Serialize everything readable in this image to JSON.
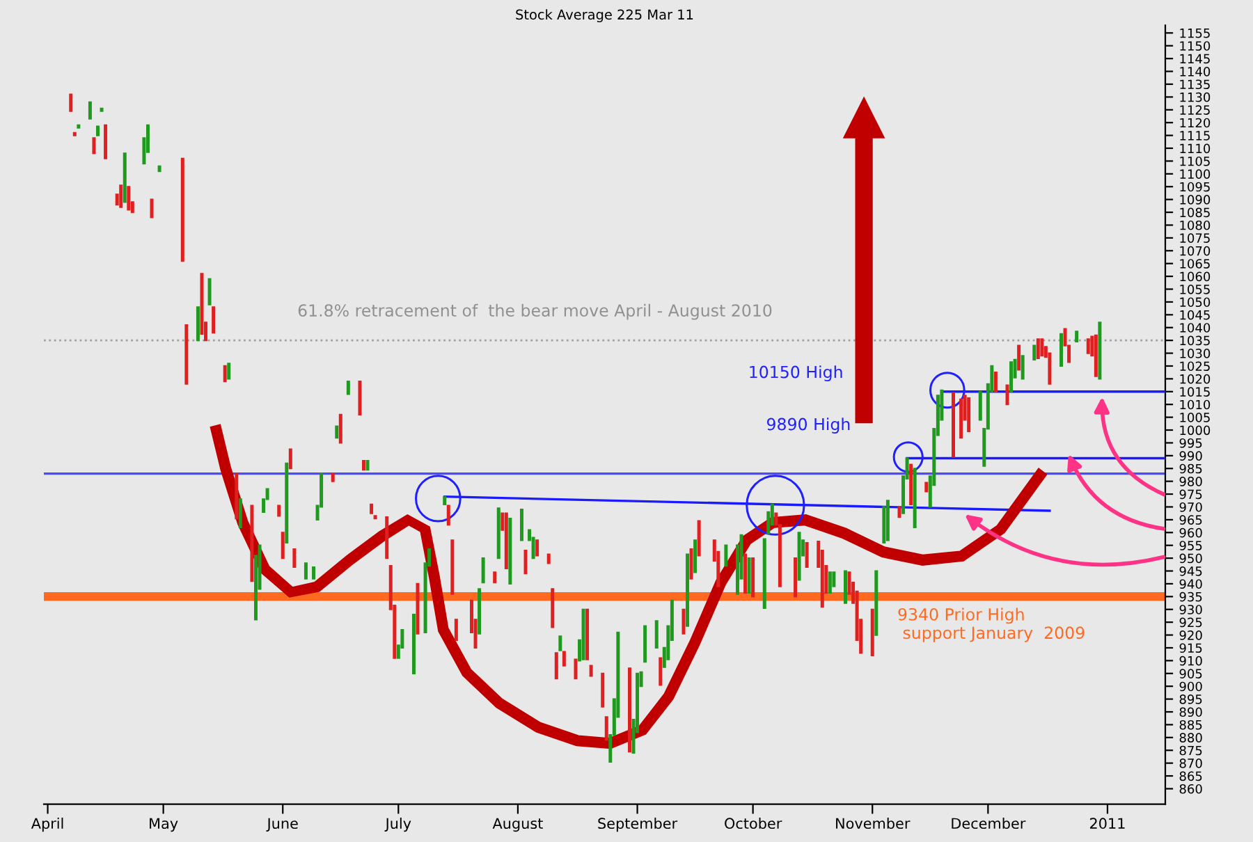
{
  "chart_data": {
    "type": "candlestick",
    "title": "Stock Average 225 Mar 11",
    "x": [
      "2010-04-07",
      "2010-04-08",
      "2010-04-09",
      "2010-04-12",
      "2010-04-13",
      "2010-04-14",
      "2010-04-15",
      "2010-04-16",
      "2010-04-19",
      "2010-04-20",
      "2010-04-21",
      "2010-04-22",
      "2010-04-23",
      "2010-04-26",
      "2010-04-27",
      "2010-04-28",
      "2010-04-30",
      "2010-05-06",
      "2010-05-07",
      "2010-05-10",
      "2010-05-11",
      "2010-05-12",
      "2010-05-13",
      "2010-05-14",
      "2010-05-17",
      "2010-05-18",
      "2010-05-20",
      "2010-05-21",
      "2010-05-24",
      "2010-05-25",
      "2010-05-26",
      "2010-05-27",
      "2010-05-28",
      "2010-05-31",
      "2010-06-01",
      "2010-06-02",
      "2010-06-03",
      "2010-06-04",
      "2010-06-07",
      "2010-06-09",
      "2010-06-10",
      "2010-06-11",
      "2010-06-14",
      "2010-06-15",
      "2010-06-16",
      "2010-06-18",
      "2010-06-21",
      "2010-06-22",
      "2010-06-23",
      "2010-06-24",
      "2010-06-25",
      "2010-06-28",
      "2010-06-29",
      "2010-06-30",
      "2010-07-01",
      "2010-07-02",
      "2010-07-05",
      "2010-07-06",
      "2010-07-08",
      "2010-07-09",
      "2010-07-13",
      "2010-07-14",
      "2010-07-15",
      "2010-07-16",
      "2010-07-20",
      "2010-07-21",
      "2010-07-22",
      "2010-07-23",
      "2010-07-26",
      "2010-07-27",
      "2010-07-28",
      "2010-07-29",
      "2010-07-30",
      "2010-08-02",
      "2010-08-03",
      "2010-08-04",
      "2010-08-05",
      "2010-08-06",
      "2010-08-09",
      "2010-08-10",
      "2010-08-11",
      "2010-08-12",
      "2010-08-13",
      "2010-08-16",
      "2010-08-17",
      "2010-08-18",
      "2010-08-19",
      "2010-08-20",
      "2010-08-23",
      "2010-08-24",
      "2010-08-25",
      "2010-08-26",
      "2010-08-27",
      "2010-08-30",
      "2010-08-31",
      "2010-09-01",
      "2010-09-02",
      "2010-09-03",
      "2010-09-06",
      "2010-09-07",
      "2010-09-08",
      "2010-09-09",
      "2010-09-10",
      "2010-09-13",
      "2010-09-14",
      "2010-09-15",
      "2010-09-16",
      "2010-09-17",
      "2010-09-21",
      "2010-09-22",
      "2010-09-24",
      "2010-09-27",
      "2010-09-28",
      "2010-09-29",
      "2010-09-30",
      "2010-10-01",
      "2010-10-04",
      "2010-10-05",
      "2010-10-06",
      "2010-10-07",
      "2010-10-08",
      "2010-10-12",
      "2010-10-13",
      "2010-10-14",
      "2010-10-15",
      "2010-10-18",
      "2010-10-19",
      "2010-10-20",
      "2010-10-21",
      "2010-10-22",
      "2010-10-25",
      "2010-10-26",
      "2010-10-27",
      "2010-10-28",
      "2010-10-29",
      "2010-11-01",
      "2010-11-02",
      "2010-11-04",
      "2010-11-05",
      "2010-11-08",
      "2010-11-09",
      "2010-11-10",
      "2010-11-11",
      "2010-11-12",
      "2010-11-15",
      "2010-11-16",
      "2010-11-17",
      "2010-11-18",
      "2010-11-19",
      "2010-11-22",
      "2010-11-24",
      "2010-11-25",
      "2010-11-26",
      "2010-11-29",
      "2010-11-30",
      "2010-12-01",
      "2010-12-02",
      "2010-12-03",
      "2010-12-06",
      "2010-12-07",
      "2010-12-08",
      "2010-12-09",
      "2010-12-10",
      "2010-12-13",
      "2010-12-14",
      "2010-12-15",
      "2010-12-16",
      "2010-12-17",
      "2010-12-20",
      "2010-12-21",
      "2010-12-22",
      "2010-12-24",
      "2010-12-27",
      "2010-12-28",
      "2010-12-29",
      "2010-12-30"
    ],
    "ohlc": [
      [
        1131,
        1131,
        1124.5,
        1124.5
      ],
      [
        1116,
        1116,
        1115,
        1115
      ],
      [
        1118,
        1119,
        1118,
        1119
      ],
      [
        1121.5,
        1128,
        1121.5,
        1128
      ],
      [
        1114,
        1114,
        1108,
        1108
      ],
      [
        1115,
        1118.5,
        1115,
        1118.5
      ],
      [
        1124.5,
        1125.5,
        1124.5,
        1125.5
      ],
      [
        1119,
        1119,
        1106,
        1106
      ],
      [
        1092,
        1092,
        1088,
        1088
      ],
      [
        1095.5,
        1095.5,
        1087,
        1087
      ],
      [
        1089,
        1108,
        1089,
        1108
      ],
      [
        1095,
        1095,
        1086,
        1086
      ],
      [
        1089,
        1089,
        1085,
        1085
      ],
      [
        1104,
        1114,
        1104,
        1114
      ],
      [
        1108.5,
        1119,
        1108.5,
        1119
      ],
      [
        1090,
        1090,
        1083,
        1083
      ],
      [
        1101,
        1103,
        1101,
        1103
      ],
      [
        1106,
        1106,
        1066,
        1066
      ],
      [
        1041,
        1041,
        1018,
        1018
      ],
      [
        1035,
        1048,
        1035,
        1048
      ],
      [
        1061,
        1061,
        1037.5,
        1037.5
      ],
      [
        1042,
        1042,
        1035,
        1035
      ],
      [
        1049,
        1059,
        1049,
        1059
      ],
      [
        1048,
        1048,
        1038,
        1038
      ],
      [
        1025,
        1025,
        1019,
        1019
      ],
      [
        1020,
        1026,
        1020,
        1026
      ],
      [
        983,
        983,
        965.5,
        965.5
      ],
      [
        962,
        973,
        962,
        973
      ],
      [
        970.5,
        970.5,
        941,
        941
      ],
      [
        926,
        951,
        926,
        951
      ],
      [
        938,
        955,
        938,
        955
      ],
      [
        968,
        973,
        968,
        973
      ],
      [
        973,
        977,
        973,
        977
      ],
      [
        970.5,
        970.5,
        966.5,
        966.5
      ],
      [
        960,
        960,
        950,
        950
      ],
      [
        956,
        987,
        956,
        987
      ],
      [
        992.5,
        992.5,
        985,
        985
      ],
      [
        953.5,
        953.5,
        946.5,
        946.5
      ],
      [
        942,
        948,
        942,
        948
      ],
      [
        942,
        946.5,
        942,
        946.5
      ],
      [
        965,
        970.5,
        965,
        970.5
      ],
      [
        970,
        983,
        970,
        983
      ],
      [
        983,
        983,
        980,
        980
      ],
      [
        997,
        1001.5,
        997,
        1001.5
      ],
      [
        1006,
        1006,
        995,
        995
      ],
      [
        1014,
        1019,
        1014,
        1019
      ],
      [
        1019,
        1019,
        1006,
        1006
      ],
      [
        988,
        988,
        984.5,
        984.5
      ],
      [
        984.5,
        988,
        984.5,
        988
      ],
      [
        971,
        971,
        967.5,
        967.5
      ],
      [
        966.5,
        966.5,
        965.5,
        965.5
      ],
      [
        966,
        966,
        950,
        950
      ],
      [
        947,
        947,
        930,
        930
      ],
      [
        931.5,
        931.5,
        911,
        911
      ],
      [
        911,
        916,
        911,
        916
      ],
      [
        915,
        922,
        915,
        922
      ],
      [
        905,
        928,
        905,
        928
      ],
      [
        940,
        940,
        920.5,
        920.5
      ],
      [
        921,
        948,
        921,
        948
      ],
      [
        947,
        953.5,
        947,
        953.5
      ],
      [
        971,
        974,
        971,
        974
      ],
      [
        970.5,
        970.5,
        963,
        963
      ],
      [
        957,
        957,
        936,
        936
      ],
      [
        926,
        926,
        918,
        918
      ],
      [
        933.5,
        933.5,
        921,
        921
      ],
      [
        926,
        926,
        915,
        915
      ],
      [
        920.5,
        938,
        920.5,
        938
      ],
      [
        940.5,
        950,
        940.5,
        950
      ],
      [
        944.5,
        944.5,
        940.5,
        940.5
      ],
      [
        950,
        969.5,
        950,
        969.5
      ],
      [
        967.5,
        967.5,
        961,
        961
      ],
      [
        967.5,
        967.5,
        946,
        946
      ],
      [
        940,
        965.5,
        940,
        965.5
      ],
      [
        957,
        969,
        957,
        969
      ],
      [
        953,
        953,
        944,
        944
      ],
      [
        957,
        961,
        957,
        961
      ],
      [
        950,
        958,
        950,
        958
      ],
      [
        957,
        957,
        951,
        951
      ],
      [
        951.5,
        951.5,
        948,
        948
      ],
      [
        938,
        938,
        923,
        923
      ],
      [
        913,
        913,
        903,
        903
      ],
      [
        914,
        919.5,
        914,
        919.5
      ],
      [
        913.5,
        913.5,
        908,
        908
      ],
      [
        910.5,
        910.5,
        903,
        903
      ],
      [
        910,
        918,
        910,
        918
      ],
      [
        910.5,
        930,
        910.5,
        930
      ],
      [
        930,
        930,
        910.5,
        910.5
      ],
      [
        908,
        908,
        904,
        904
      ],
      [
        905,
        905,
        892,
        892
      ],
      [
        888,
        888,
        879,
        879
      ],
      [
        870.5,
        881,
        870.5,
        881
      ],
      [
        881,
        895,
        881,
        895
      ],
      [
        888,
        921,
        888,
        921
      ],
      [
        907,
        907,
        874.5,
        874.5
      ],
      [
        874,
        887,
        874,
        887
      ],
      [
        882,
        905,
        882,
        905
      ],
      [
        900,
        905.5,
        900,
        905.5
      ],
      [
        909.5,
        923.5,
        909.5,
        923.5
      ],
      [
        915,
        925.5,
        915,
        925.5
      ],
      [
        911,
        911,
        900.5,
        900.5
      ],
      [
        907.5,
        915,
        907.5,
        915
      ],
      [
        910.5,
        923.5,
        910.5,
        923.5
      ],
      [
        918,
        933.5,
        918,
        933.5
      ],
      [
        930,
        930,
        920.5,
        920.5
      ],
      [
        923.5,
        951.5,
        923.5,
        951.5
      ],
      [
        953.5,
        953.5,
        942,
        942
      ],
      [
        944.5,
        957,
        944.5,
        957
      ],
      [
        964.5,
        964.5,
        951,
        951
      ],
      [
        957,
        957,
        949,
        949
      ],
      [
        952.5,
        952.5,
        939,
        939
      ],
      [
        947,
        955,
        947,
        955
      ],
      [
        936,
        955,
        936,
        955
      ],
      [
        942,
        959,
        942,
        959
      ],
      [
        951.5,
        951.5,
        936.5,
        936.5
      ],
      [
        936.5,
        950,
        936.5,
        950
      ],
      [
        950,
        950,
        935,
        935
      ],
      [
        930.5,
        957.5,
        930.5,
        957.5
      ],
      [
        959.5,
        968,
        959.5,
        968
      ],
      [
        963,
        971,
        963,
        971
      ],
      [
        967.5,
        967.5,
        963,
        963
      ],
      [
        963,
        963,
        939,
        939
      ],
      [
        950,
        950,
        935,
        935
      ],
      [
        941.5,
        960,
        941.5,
        960
      ],
      [
        951,
        957,
        951,
        957
      ],
      [
        956,
        956,
        946.5,
        946.5
      ],
      [
        956.5,
        956.5,
        946.5,
        946.5
      ],
      [
        953,
        953,
        931,
        931
      ],
      [
        947,
        947,
        936.5,
        936.5
      ],
      [
        936.5,
        944.5,
        936.5,
        944.5
      ],
      [
        939,
        944.5,
        939,
        944.5
      ],
      [
        932.5,
        945,
        932.5,
        945
      ],
      [
        944.5,
        944.5,
        936,
        936
      ],
      [
        940.5,
        940.5,
        932.5,
        932.5
      ],
      [
        937,
        937,
        918,
        918
      ],
      [
        926,
        926,
        913,
        913
      ],
      [
        930,
        930,
        912,
        912
      ],
      [
        920,
        945,
        920,
        945
      ],
      [
        956,
        970,
        956,
        970
      ],
      [
        957,
        972.5,
        957,
        972.5
      ],
      [
        970,
        970,
        966,
        966
      ],
      [
        967.5,
        982,
        967.5,
        982
      ],
      [
        981,
        989,
        981,
        989
      ],
      [
        986.5,
        986.5,
        971,
        971
      ],
      [
        962,
        985,
        962,
        985
      ],
      [
        979.5,
        979.5,
        976,
        976
      ],
      [
        970,
        982,
        970,
        982
      ],
      [
        978.5,
        1000.5,
        978.5,
        1000.5
      ],
      [
        998,
        1013.5,
        998,
        1013.5
      ],
      [
        1004,
        1015.5,
        1004,
        1015.5
      ],
      [
        1014.5,
        1014.5,
        989.5,
        989.5
      ],
      [
        1012,
        1012,
        997,
        997
      ],
      [
        1013.5,
        1013.5,
        1004,
        1004
      ],
      [
        1012.5,
        1012.5,
        999.5,
        999.5
      ],
      [
        1004,
        1015,
        1004,
        1015
      ],
      [
        986,
        1000.5,
        986,
        1000.5
      ],
      [
        1000.5,
        1018,
        1000.5,
        1018
      ],
      [
        1015,
        1025,
        1015,
        1025
      ],
      [
        1022.5,
        1022.5,
        1015,
        1015
      ],
      [
        1017.5,
        1017.5,
        1010,
        1010
      ],
      [
        1015,
        1026.5,
        1015,
        1026.5
      ],
      [
        1020.5,
        1027.5,
        1020.5,
        1027.5
      ],
      [
        1033,
        1033,
        1023.5,
        1023.5
      ],
      [
        1020,
        1029,
        1020,
        1029
      ],
      [
        1027.5,
        1033,
        1027.5,
        1033
      ],
      [
        1035.5,
        1035.5,
        1028,
        1028
      ],
      [
        1035.5,
        1035.5,
        1029,
        1029
      ],
      [
        1032.5,
        1032.5,
        1028.5,
        1028.5
      ],
      [
        1030,
        1030,
        1018,
        1018
      ],
      [
        1025,
        1037.5,
        1025,
        1037.5
      ],
      [
        1039.5,
        1039.5,
        1033,
        1033
      ],
      [
        1033,
        1033,
        1026.5,
        1026.5
      ],
      [
        1034.5,
        1038.5,
        1034.5,
        1038.5
      ],
      [
        1035.5,
        1035.5,
        1030,
        1030
      ],
      [
        1036.5,
        1036.5,
        1029,
        1029
      ],
      [
        1037,
        1037,
        1021,
        1021
      ],
      [
        1020,
        1042,
        1020,
        1042
      ]
    ],
    "colors": [
      "#e02020",
      "#e02020",
      "#1f9a1f",
      "#1f9a1f",
      "#e02020",
      "#1f9a1f",
      "#1f9a1f",
      "#e02020",
      "#e02020",
      "#e02020",
      "#1f9a1f",
      "#e02020",
      "#e02020",
      "#1f9a1f",
      "#1f9a1f",
      "#e02020",
      "#1f9a1f",
      "#e02020",
      "#e02020",
      "#1f9a1f",
      "#e02020",
      "#e02020",
      "#1f9a1f",
      "#e02020",
      "#e02020",
      "#1f9a1f",
      "#e02020",
      "#1f9a1f",
      "#e02020",
      "#1f9a1f",
      "#1f9a1f",
      "#1f9a1f",
      "#1f9a1f",
      "#e02020",
      "#e02020",
      "#1f9a1f",
      "#e02020",
      "#e02020",
      "#1f9a1f",
      "#1f9a1f",
      "#1f9a1f",
      "#1f9a1f",
      "#e02020",
      "#1f9a1f",
      "#e02020",
      "#1f9a1f",
      "#e02020",
      "#e02020",
      "#1f9a1f",
      "#e02020",
      "#e02020",
      "#e02020",
      "#e02020",
      "#e02020",
      "#1f9a1f",
      "#1f9a1f",
      "#1f9a1f",
      "#e02020",
      "#1f9a1f",
      "#1f9a1f",
      "#1f9a1f",
      "#e02020",
      "#e02020",
      "#e02020",
      "#e02020",
      "#e02020",
      "#1f9a1f",
      "#1f9a1f",
      "#e02020",
      "#1f9a1f",
      "#e02020",
      "#e02020",
      "#1f9a1f",
      "#1f9a1f",
      "#e02020",
      "#1f9a1f",
      "#1f9a1f",
      "#e02020",
      "#e02020",
      "#e02020",
      "#e02020",
      "#1f9a1f",
      "#e02020",
      "#e02020",
      "#1f9a1f",
      "#1f9a1f",
      "#e02020",
      "#e02020",
      "#e02020",
      "#e02020",
      "#1f9a1f",
      "#1f9a1f",
      "#1f9a1f",
      "#e02020",
      "#1f9a1f",
      "#1f9a1f",
      "#1f9a1f",
      "#1f9a1f",
      "#1f9a1f",
      "#e02020",
      "#1f9a1f",
      "#1f9a1f",
      "#1f9a1f",
      "#e02020",
      "#1f9a1f",
      "#e02020",
      "#1f9a1f",
      "#e02020",
      "#e02020",
      "#e02020",
      "#1f9a1f",
      "#1f9a1f",
      "#1f9a1f",
      "#e02020",
      "#1f9a1f",
      "#e02020",
      "#1f9a1f",
      "#1f9a1f",
      "#1f9a1f",
      "#e02020",
      "#e02020",
      "#e02020",
      "#1f9a1f",
      "#1f9a1f",
      "#e02020",
      "#e02020",
      "#e02020",
      "#e02020",
      "#1f9a1f",
      "#1f9a1f",
      "#1f9a1f",
      "#e02020",
      "#e02020",
      "#e02020",
      "#e02020",
      "#e02020",
      "#1f9a1f",
      "#1f9a1f",
      "#1f9a1f",
      "#e02020",
      "#1f9a1f",
      "#1f9a1f",
      "#e02020",
      "#1f9a1f",
      "#e02020",
      "#1f9a1f",
      "#1f9a1f",
      "#1f9a1f",
      "#1f9a1f",
      "#e02020",
      "#e02020",
      "#e02020",
      "#e02020",
      "#1f9a1f",
      "#1f9a1f",
      "#1f9a1f",
      "#1f9a1f",
      "#e02020",
      "#e02020",
      "#1f9a1f",
      "#1f9a1f",
      "#e02020",
      "#1f9a1f",
      "#1f9a1f",
      "#e02020",
      "#e02020",
      "#e02020",
      "#e02020",
      "#1f9a1f",
      "#e02020",
      "#e02020",
      "#1f9a1f",
      "#e02020",
      "#e02020",
      "#e02020",
      "#1f9a1f"
    ],
    "series": [
      {
        "type": "line",
        "color": "#1a1aff",
        "x": [
          "2010-07-13",
          "2010-12-17"
        ],
        "values": [
          974,
          968.5
        ]
      },
      {
        "type": "line",
        "color": "#1a1aff",
        "x": [
          "2010-11-10",
          "2011-01-16"
        ],
        "values": [
          989,
          989
        ]
      },
      {
        "type": "line",
        "color": "#1a1aff",
        "x": [
          "2010-11-19",
          "2011-01-16"
        ],
        "values": [
          1015,
          1015
        ]
      }
    ],
    "ref_lines": [
      {
        "axis": "y",
        "value": 1035,
        "color": "#a0a0a0",
        "line_style": "dotted"
      },
      {
        "axis": "y",
        "value": 983,
        "color": "#4a4aff",
        "line_style": "solid"
      },
      {
        "axis": "y",
        "value": 935,
        "color": "#ff6a20",
        "line_style": "solid"
      }
    ],
    "annotations": [
      "61.8% retracement of  the bear move April - August 2010",
      "10150 High",
      "9890 High",
      "9340 Prior High\n support January  2009"
    ],
    "xlim": [
      "2010-03-31",
      "2011-01-16"
    ],
    "xticks": [
      {
        "value": "2010-04-01",
        "label": "April"
      },
      {
        "value": "2010-05-01",
        "label": "May"
      },
      {
        "value": "2010-06-01",
        "label": "June"
      },
      {
        "value": "2010-07-01",
        "label": "July"
      },
      {
        "value": "2010-08-01",
        "label": "August"
      },
      {
        "value": "2010-09-01",
        "label": "September"
      },
      {
        "value": "2010-10-01",
        "label": "October"
      },
      {
        "value": "2010-11-01",
        "label": "November"
      },
      {
        "value": "2010-12-01",
        "label": "December"
      },
      {
        "value": "2011-01-01",
        "label": "2011"
      }
    ],
    "ylim": [
      854,
      1158
    ],
    "yticks": [
      860,
      865,
      870,
      875,
      880,
      885,
      890,
      895,
      900,
      905,
      910,
      915,
      920,
      925,
      930,
      935,
      940,
      945,
      950,
      955,
      960,
      965,
      970,
      975,
      980,
      985,
      990,
      995,
      1000,
      1005,
      1010,
      1015,
      1020,
      1025,
      1030,
      1035,
      1040,
      1045,
      1050,
      1055,
      1060,
      1065,
      1070,
      1075,
      1080,
      1085,
      1090,
      1095,
      1100,
      1105,
      1110,
      1115,
      1120,
      1125,
      1130,
      1135,
      1140,
      1145,
      1150,
      1155
    ]
  }
}
